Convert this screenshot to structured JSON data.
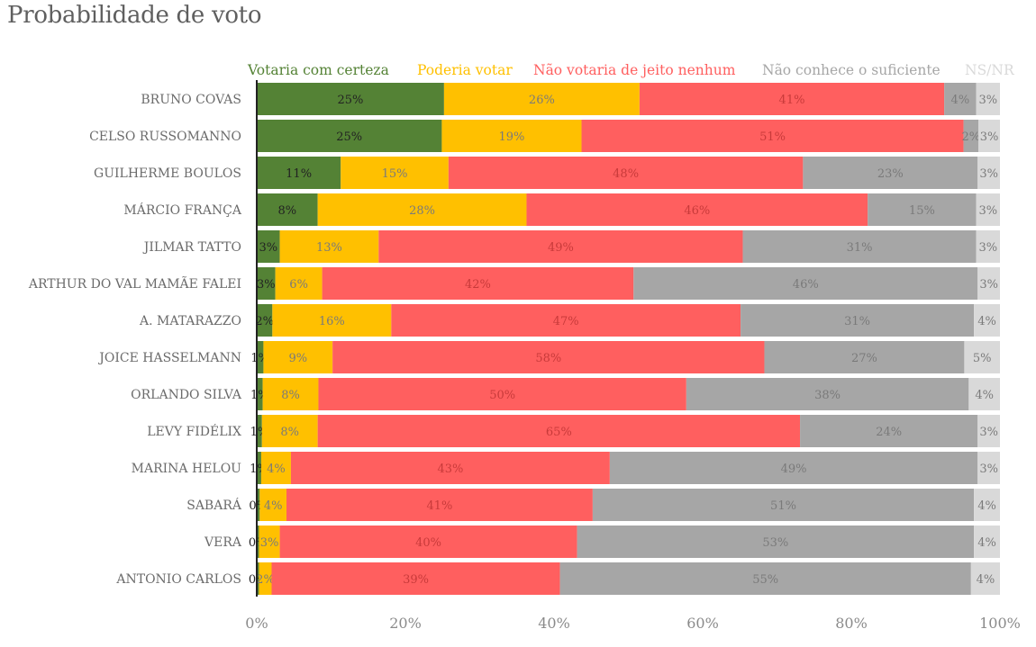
{
  "chart_data": {
    "type": "bar",
    "orientation": "horizontal",
    "stacked": "percent",
    "title": "Probabilidade de voto",
    "categories": [
      "BRUNO COVAS",
      "CELSO RUSSOMANNO",
      "GUILHERME BOULOS",
      "MÁRCIO FRANÇA",
      "JILMAR TATTO",
      "ARTHUR DO VAL MAMÃE FALEI",
      "A. MATARAZZO",
      "JOICE HASSELMANN",
      "ORLANDO SILVA",
      "LEVY FIDÉLIX",
      "MARINA HELOU",
      "SABARÁ",
      "VERA",
      "ANTONIO CARLOS"
    ],
    "series": [
      {
        "name": "Votaria com certeza",
        "color": "#548235",
        "label_color": "#222222",
        "values": [
          25.2,
          24.9,
          11.3,
          8.2,
          3.1,
          2.5,
          2.1,
          0.9,
          0.8,
          0.7,
          0.6,
          0.4,
          0.3,
          0.3
        ],
        "labels": [
          "25%",
          "25%",
          "11%",
          "8%",
          "3%",
          "3%",
          "2%",
          "1%",
          "1%",
          "1%",
          "1%",
          "0%",
          "0%",
          "0%"
        ]
      },
      {
        "name": "Poderia votar",
        "color": "#FFC000",
        "label_color": "#7a7a7a",
        "values": [
          26.3,
          18.8,
          14.5,
          28.1,
          13.3,
          6.3,
          16.0,
          9.3,
          7.5,
          7.5,
          4.0,
          3.6,
          2.8,
          1.7
        ],
        "labels": [
          "26%",
          "19%",
          "15%",
          "28%",
          "13%",
          "6%",
          "16%",
          "9%",
          "8%",
          "8%",
          "4%",
          "4%",
          "3%",
          "2%"
        ]
      },
      {
        "name": "Não votaria de jeito nenhum",
        "color": "#FF5F5F",
        "label_color": "#c83a3a",
        "values": [
          41.0,
          51.4,
          47.7,
          45.9,
          49.0,
          41.9,
          47.0,
          58.1,
          49.5,
          64.9,
          42.9,
          41.2,
          40.0,
          38.8
        ],
        "labels": [
          "41%",
          "51%",
          "48%",
          "46%",
          "49%",
          "42%",
          "47%",
          "58%",
          "50%",
          "65%",
          "43%",
          "41%",
          "40%",
          "39%"
        ]
      },
      {
        "name": "Não conhece o suficiente",
        "color": "#A6A6A6",
        "label_color": "#7a7a7a",
        "values": [
          4.3,
          2.0,
          23.5,
          14.6,
          31.4,
          46.3,
          31.4,
          26.9,
          38.0,
          23.9,
          49.5,
          51.3,
          53.4,
          55.3
        ],
        "labels": [
          "4%",
          "2%",
          "23%",
          "15%",
          "31%",
          "46%",
          "31%",
          "27%",
          "38%",
          "24%",
          "49%",
          "51%",
          "53%",
          "55%"
        ]
      },
      {
        "name": "NS/NR",
        "color": "#D9D9D9",
        "label_color": "#7a7a7a",
        "values": [
          3.2,
          2.9,
          3.0,
          3.2,
          3.2,
          3.0,
          3.5,
          4.8,
          4.2,
          3.0,
          3.0,
          3.5,
          3.5,
          3.9
        ],
        "labels": [
          "3%",
          "3%",
          "3%",
          "3%",
          "3%",
          "3%",
          "4%",
          "5%",
          "4%",
          "3%",
          "3%",
          "4%",
          "4%",
          "4%"
        ]
      }
    ],
    "x_ticks": [
      "0%",
      "20%",
      "40%",
      "60%",
      "80%",
      "100%"
    ],
    "xlim": [
      0,
      100
    ],
    "grid": false,
    "legend_position": "top"
  }
}
